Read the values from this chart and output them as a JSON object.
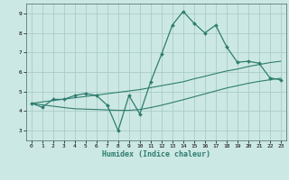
{
  "xlabel": "Humidex (Indice chaleur)",
  "x_values": [
    0,
    1,
    2,
    3,
    4,
    5,
    6,
    7,
    8,
    9,
    10,
    11,
    12,
    13,
    14,
    15,
    16,
    17,
    18,
    19,
    20,
    21,
    22,
    23
  ],
  "main_line": [
    4.4,
    4.2,
    4.6,
    4.6,
    4.8,
    4.9,
    4.8,
    4.3,
    3.0,
    4.8,
    3.85,
    5.5,
    6.9,
    8.4,
    9.1,
    8.5,
    8.0,
    8.4,
    7.3,
    6.5,
    6.55,
    6.45,
    5.7,
    5.6
  ],
  "trend_upper": [
    4.4,
    4.47,
    4.54,
    4.61,
    4.68,
    4.75,
    4.82,
    4.89,
    4.96,
    5.03,
    5.1,
    5.2,
    5.3,
    5.4,
    5.5,
    5.65,
    5.78,
    5.92,
    6.05,
    6.15,
    6.28,
    6.38,
    6.48,
    6.55
  ],
  "trend_lower": [
    4.4,
    4.32,
    4.25,
    4.18,
    4.12,
    4.1,
    4.08,
    4.06,
    4.04,
    4.04,
    4.08,
    4.18,
    4.3,
    4.44,
    4.58,
    4.73,
    4.88,
    5.03,
    5.18,
    5.3,
    5.42,
    5.52,
    5.6,
    5.68
  ],
  "line_color": "#2e7d6e",
  "bg_color": "#cce8e4",
  "grid_color": "#aaccc8",
  "ylim": [
    2.5,
    9.5
  ],
  "yticks": [
    3,
    4,
    5,
    6,
    7,
    8,
    9
  ],
  "xlim": [
    -0.5,
    23.5
  ],
  "xticks": [
    0,
    1,
    2,
    3,
    4,
    5,
    6,
    7,
    8,
    9,
    10,
    11,
    12,
    13,
    14,
    15,
    16,
    17,
    18,
    19,
    20,
    21,
    22,
    23
  ]
}
